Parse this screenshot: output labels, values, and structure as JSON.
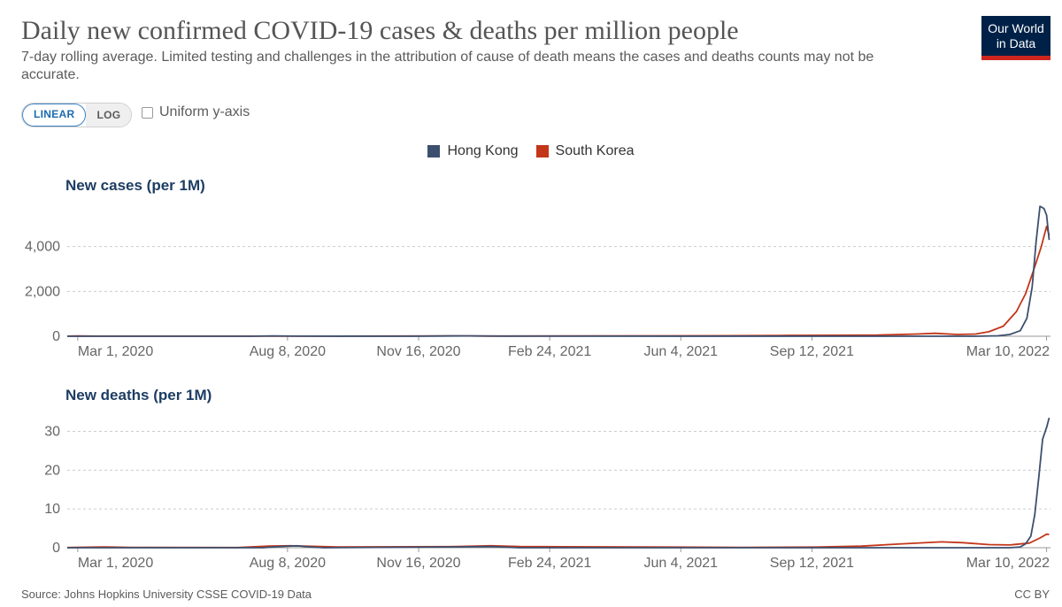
{
  "header": {
    "title": "Daily new confirmed COVID-19 cases & deaths per million people",
    "subtitle": "7-day rolling average. Limited testing and challenges in the attribution of cause of death means the cases and deaths counts may not be accurate.",
    "logo_line1": "Our World",
    "logo_line2": "in Data"
  },
  "controls": {
    "linear_label": "LINEAR",
    "log_label": "LOG",
    "active_scale": "LINEAR",
    "uniform_label": "Uniform y-axis",
    "uniform_checked": false
  },
  "legend": {
    "items": [
      {
        "label": "Hong Kong",
        "color": "#3d4f6e"
      },
      {
        "label": "South Korea",
        "color": "#c3361a"
      }
    ]
  },
  "chart_data": [
    {
      "type": "line",
      "title": "New cases (per 1M)",
      "xlabel": "",
      "ylabel": "",
      "x_tick_labels": [
        "Mar 1, 2020",
        "Aug 8, 2020",
        "Nov 16, 2020",
        "Feb 24, 2021",
        "Jun 4, 2021",
        "Sep 12, 2021",
        "Mar 10, 2022"
      ],
      "x_range": [
        "2020-02-22",
        "2022-03-13"
      ],
      "y_tick_labels": [
        "0",
        "2,000",
        "4,000"
      ],
      "yticks": [
        0,
        2000,
        4000
      ],
      "ylim": [
        0,
        6000
      ],
      "grid": "horizontal dashed",
      "series": [
        {
          "name": "Hong Kong",
          "color": "#3d4f6e",
          "points": [
            [
              "2020-02-22",
              0
            ],
            [
              "2020-07-10",
              0
            ],
            [
              "2020-07-28",
              15
            ],
            [
              "2020-08-15",
              5
            ],
            [
              "2020-11-10",
              0
            ],
            [
              "2020-12-10",
              10
            ],
            [
              "2020-12-25",
              15
            ],
            [
              "2021-01-20",
              5
            ],
            [
              "2022-01-15",
              0
            ],
            [
              "2022-02-01",
              20
            ],
            [
              "2022-02-10",
              80
            ],
            [
              "2022-02-18",
              250
            ],
            [
              "2022-02-23",
              800
            ],
            [
              "2022-02-27",
              2200
            ],
            [
              "2022-03-02",
              4200
            ],
            [
              "2022-03-05",
              5800
            ],
            [
              "2022-03-08",
              5700
            ],
            [
              "2022-03-10",
              5400
            ],
            [
              "2022-03-12",
              4300
            ]
          ]
        },
        {
          "name": "South Korea",
          "color": "#c3361a",
          "points": [
            [
              "2020-02-22",
              5
            ],
            [
              "2020-03-01",
              10
            ],
            [
              "2020-03-15",
              3
            ],
            [
              "2020-08-25",
              5
            ],
            [
              "2020-12-20",
              15
            ],
            [
              "2021-01-10",
              8
            ],
            [
              "2021-07-10",
              25
            ],
            [
              "2021-08-20",
              35
            ],
            [
              "2021-10-01",
              45
            ],
            [
              "2021-11-01",
              50
            ],
            [
              "2021-12-01",
              100
            ],
            [
              "2021-12-15",
              130
            ],
            [
              "2022-01-01",
              80
            ],
            [
              "2022-01-15",
              100
            ],
            [
              "2022-01-25",
              200
            ],
            [
              "2022-02-05",
              450
            ],
            [
              "2022-02-15",
              1100
            ],
            [
              "2022-02-22",
              1900
            ],
            [
              "2022-03-01",
              3100
            ],
            [
              "2022-03-06",
              4000
            ],
            [
              "2022-03-10",
              4900
            ],
            [
              "2022-03-12",
              4500
            ]
          ]
        }
      ]
    },
    {
      "type": "line",
      "title": "New deaths (per 1M)",
      "xlabel": "",
      "ylabel": "",
      "x_tick_labels": [
        "Mar 1, 2020",
        "Aug 8, 2020",
        "Nov 16, 2020",
        "Feb 24, 2021",
        "Jun 4, 2021",
        "Sep 12, 2021",
        "Mar 10, 2022"
      ],
      "x_range": [
        "2020-02-22",
        "2022-03-13"
      ],
      "y_tick_labels": [
        "0",
        "10",
        "20",
        "30"
      ],
      "yticks": [
        0,
        10,
        20,
        30
      ],
      "ylim": [
        0,
        34
      ],
      "grid": "horizontal dashed",
      "series": [
        {
          "name": "Hong Kong",
          "color": "#3d4f6e",
          "points": [
            [
              "2020-02-22",
              0
            ],
            [
              "2020-07-20",
              0
            ],
            [
              "2020-08-02",
              0.3
            ],
            [
              "2020-08-15",
              0.5
            ],
            [
              "2020-08-25",
              0.2
            ],
            [
              "2020-09-05",
              0
            ],
            [
              "2020-12-15",
              0.2
            ],
            [
              "2021-01-10",
              0.3
            ],
            [
              "2021-02-01",
              0
            ],
            [
              "2022-02-10",
              0
            ],
            [
              "2022-02-18",
              0.2
            ],
            [
              "2022-02-22",
              1
            ],
            [
              "2022-02-26",
              3
            ],
            [
              "2022-03-01",
              8.5
            ],
            [
              "2022-03-04",
              18
            ],
            [
              "2022-03-07",
              28
            ],
            [
              "2022-03-10",
              31
            ],
            [
              "2022-03-12",
              33.5
            ]
          ]
        },
        {
          "name": "South Korea",
          "color": "#c3361a",
          "points": [
            [
              "2020-02-22",
              0.05
            ],
            [
              "2020-03-20",
              0.2
            ],
            [
              "2020-04-10",
              0.1
            ],
            [
              "2020-07-01",
              0.05
            ],
            [
              "2020-07-25",
              0.4
            ],
            [
              "2020-08-10",
              0.5
            ],
            [
              "2020-09-15",
              0.2
            ],
            [
              "2020-12-15",
              0.3
            ],
            [
              "2021-01-10",
              0.5
            ],
            [
              "2021-02-01",
              0.3
            ],
            [
              "2021-07-20",
              0.1
            ],
            [
              "2021-09-15",
              0.15
            ],
            [
              "2021-10-20",
              0.4
            ],
            [
              "2021-11-20",
              1.0
            ],
            [
              "2021-12-20",
              1.5
            ],
            [
              "2022-01-05",
              1.3
            ],
            [
              "2022-01-25",
              0.8
            ],
            [
              "2022-02-10",
              0.7
            ],
            [
              "2022-02-25",
              1.2
            ],
            [
              "2022-03-05",
              2.5
            ],
            [
              "2022-03-10",
              3.5
            ],
            [
              "2022-03-12",
              3.4
            ]
          ]
        }
      ]
    }
  ],
  "footer": {
    "source": "Source: Johns Hopkins University CSSE COVID-19 Data",
    "license": "CC BY"
  }
}
